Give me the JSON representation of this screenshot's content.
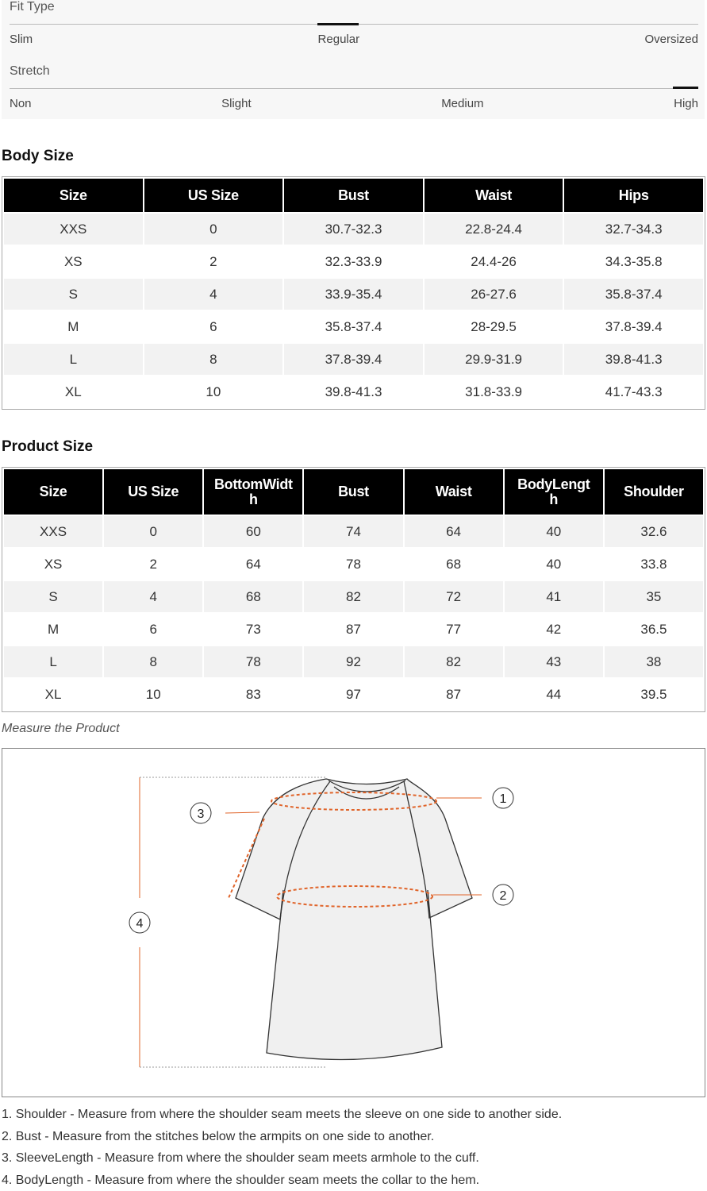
{
  "fit_panel": {
    "fit_type": {
      "label": "Fit Type",
      "options": [
        "Slim",
        "Regular",
        "Oversized"
      ]
    },
    "stretch": {
      "label": "Stretch",
      "options": [
        "Non",
        "Slight",
        "Medium",
        "High"
      ]
    }
  },
  "body_size": {
    "title": "Body Size",
    "header": [
      "Size",
      "US Size",
      "Bust",
      "Waist",
      "Hips"
    ],
    "rows": [
      [
        "XXS",
        "0",
        "30.7-32.3",
        "22.8-24.4",
        "32.7-34.3"
      ],
      [
        "XS",
        "2",
        "32.3-33.9",
        "24.4-26",
        "34.3-35.8"
      ],
      [
        "S",
        "4",
        "33.9-35.4",
        "26-27.6",
        "35.8-37.4"
      ],
      [
        "M",
        "6",
        "35.8-37.4",
        "28-29.5",
        "37.8-39.4"
      ],
      [
        "L",
        "8",
        "37.8-39.4",
        "29.9-31.9",
        "39.8-41.3"
      ],
      [
        "XL",
        "10",
        "39.8-41.3",
        "31.8-33.9",
        "41.7-43.3"
      ]
    ]
  },
  "product_size": {
    "title": "Product Size",
    "header": [
      "Size",
      "US Size",
      "BottomWidth",
      "Bust",
      "Waist",
      "BodyLength",
      "Shoulder"
    ],
    "rows": [
      [
        "XXS",
        "0",
        "60",
        "74",
        "64",
        "40",
        "32.6"
      ],
      [
        "XS",
        "2",
        "64",
        "78",
        "68",
        "40",
        "33.8"
      ],
      [
        "S",
        "4",
        "68",
        "82",
        "72",
        "41",
        "35"
      ],
      [
        "M",
        "6",
        "73",
        "87",
        "77",
        "42",
        "36.5"
      ],
      [
        "L",
        "8",
        "78",
        "92",
        "82",
        "43",
        "38"
      ],
      [
        "XL",
        "10",
        "83",
        "97",
        "87",
        "44",
        "39.5"
      ]
    ]
  },
  "diagram": {
    "caption": "Measure the Product",
    "markers": [
      "1",
      "2",
      "3",
      "4"
    ]
  },
  "notes": [
    "1. Shoulder - Measure from where the shoulder seam meets the sleeve on one side to another side.",
    "2. Bust - Measure from the stitches below the armpits on one side to another.",
    "3. SleeveLength - Measure from where the shoulder seam meets armhole to the cuff.",
    "4. BodyLength - Measure from where the shoulder seam meets the collar to the hem."
  ]
}
